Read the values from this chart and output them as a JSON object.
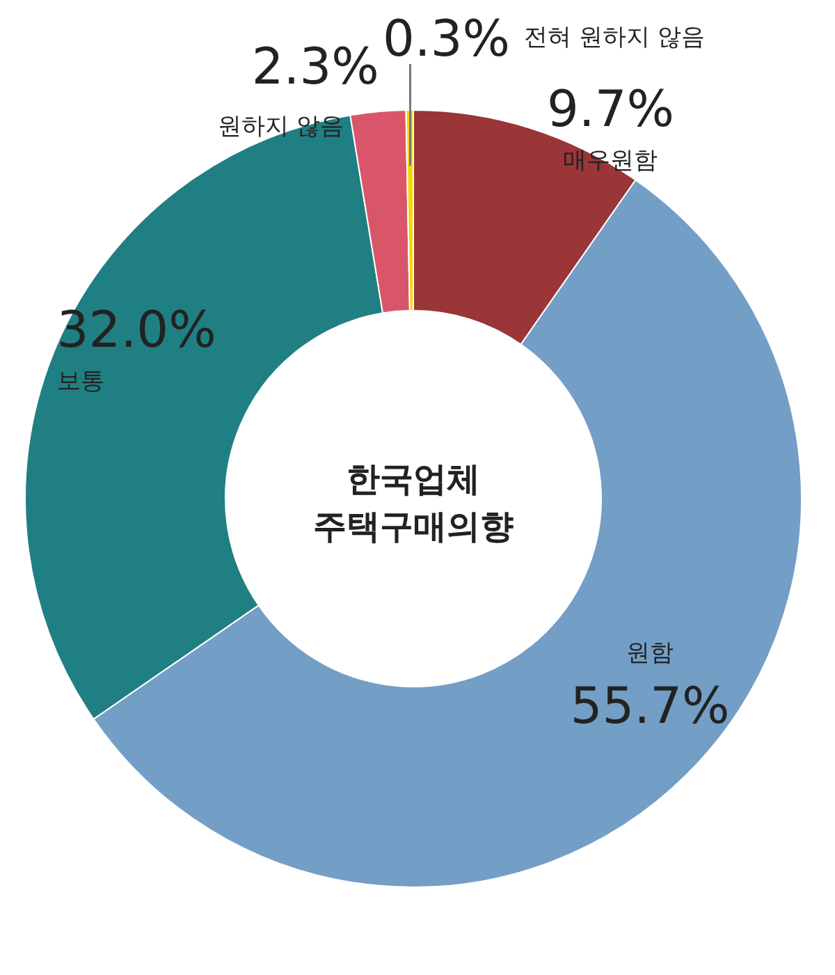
{
  "chart_data": {
    "type": "donut",
    "title": "한국업체 주택구매의향",
    "categories": [
      "매우원함",
      "원함",
      "보통",
      "원하지 않음",
      "전혀 원하지 않음"
    ],
    "values": [
      9.7,
      55.7,
      32.0,
      2.3,
      0.3
    ],
    "colors": [
      "#9a3538",
      "#739ec6",
      "#207f82",
      "#d9566a",
      "#f5d800"
    ],
    "value_labels": [
      "9.7%",
      "55.7%",
      "32.0%",
      "2.3%",
      "0.3%"
    ]
  }
}
